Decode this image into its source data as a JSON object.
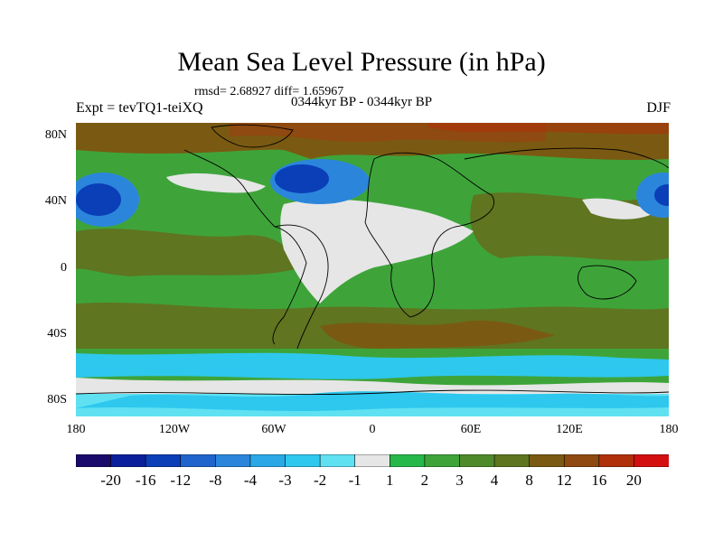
{
  "header": {
    "title": "Mean Sea Level Pressure (in hPa)",
    "stats": "rmsd= 2.68927 diff= 1.65967",
    "experiment": "Expt = tevTQ1-teiXQ",
    "period": "0344kyr BP - 0344kyr BP",
    "season": "DJF"
  },
  "axes": {
    "y_ticks": [
      "80N",
      "40N",
      "0",
      "40S",
      "80S"
    ],
    "x_ticks": [
      "180",
      "120W",
      "60W",
      "0",
      "60E",
      "120E",
      "180"
    ]
  },
  "colorbar": {
    "labels": [
      "-20",
      "-16",
      "-12",
      "-8",
      "-4",
      "-3",
      "-2",
      "-1",
      "1",
      "2",
      "3",
      "4",
      "8",
      "12",
      "16",
      "20"
    ],
    "colors": [
      "#1a0a6b",
      "#0a1f99",
      "#0a3fb8",
      "#1f64cc",
      "#2b86db",
      "#2aa8e6",
      "#2ec8ee",
      "#5fe1f2",
      "#e6e6e6",
      "#27b84a",
      "#3ea43a",
      "#4e8a2a",
      "#5f7520",
      "#7a5a12",
      "#8e4a10",
      "#b0300a",
      "#d40f0f"
    ]
  },
  "colors": {
    "ocean_high": "#5a6b1e",
    "anomaly_green": "#27b84a",
    "anomaly_gray": "#e6e6e6",
    "anomaly_brown": "#7a5a12",
    "anomaly_blue": "#1f64cc",
    "anomaly_cyan": "#2ec8ee"
  }
}
